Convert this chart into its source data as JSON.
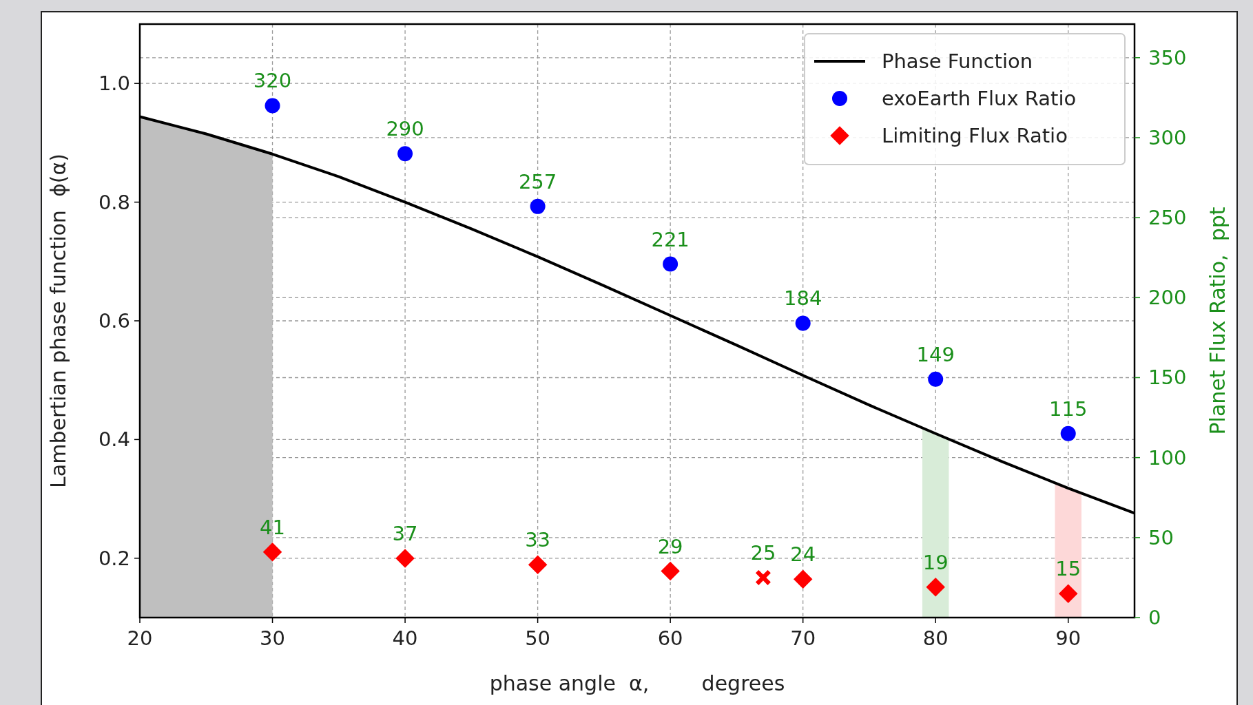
{
  "chart_data": {
    "type": "scatter",
    "xlabel": "phase angle  α,        degrees",
    "ylabel": "Lambertian phase function  ϕ(α)",
    "y2label": "Planet Flux Ratio,  ppt",
    "xlim": [
      20,
      95
    ],
    "xticks": [
      20,
      30,
      40,
      50,
      60,
      70,
      80,
      90
    ],
    "ylim": [
      0.1,
      1.1
    ],
    "yticks": [
      0.2,
      0.4,
      0.6,
      0.8,
      {
        "value": 1,
        "label": "1.0"
      }
    ],
    "y2lim": [
      0,
      371
    ],
    "y2ticks": [
      0,
      50,
      100,
      150,
      200,
      250,
      300,
      350
    ],
    "grid": true,
    "legend": "top right",
    "series": [
      {
        "type": "area",
        "color": "#bfbfbf",
        "x": [
          20,
          25,
          30
        ],
        "values": [
          0.944,
          0.915,
          0.881
        ]
      },
      {
        "type": "area",
        "color": "#d8ecd8",
        "x": [
          79,
          81
        ],
        "values": [
          0.419,
          0.4
        ]
      },
      {
        "type": "area",
        "color": "#fdd8d8",
        "x": [
          89,
          91
        ],
        "values": [
          0.328,
          0.309
        ]
      },
      {
        "type": "line",
        "name": "Phase Function",
        "color": "#000000",
        "marker": "none",
        "line_style": "solid",
        "x": [
          20,
          25,
          30,
          35,
          40,
          45,
          50,
          55,
          60,
          65,
          70,
          75,
          80,
          85,
          90,
          95
        ],
        "values": [
          0.944,
          0.915,
          0.881,
          0.843,
          0.8,
          0.755,
          0.708,
          0.659,
          0.609,
          0.559,
          0.508,
          0.458,
          0.41,
          0.363,
          0.318,
          0.276
        ]
      },
      {
        "name": "exoEarth Flux Ratio",
        "color": "#0000ff",
        "marker": "circle",
        "axis": "y2",
        "x": [
          30,
          40,
          50,
          60,
          70,
          80,
          90
        ],
        "values": [
          320,
          290,
          257,
          221,
          184,
          149,
          115
        ],
        "value_labels": [
          "320",
          "290",
          "257",
          "221",
          "184",
          "149",
          "115"
        ]
      },
      {
        "name": "Limiting Flux Ratio",
        "color": "#ff0000",
        "marker": "diamond",
        "axis": "y2",
        "x": [
          30,
          40,
          50,
          60,
          70,
          80,
          90
        ],
        "values": [
          41,
          37,
          33,
          29,
          24,
          19,
          15
        ],
        "value_labels": [
          "41",
          "37",
          "33",
          "29",
          "24",
          "19",
          "15"
        ]
      },
      {
        "color": "#ff0000",
        "marker": "cross",
        "axis": "y2",
        "x": [
          67
        ],
        "values": [
          25
        ],
        "value_labels": [
          "25"
        ]
      }
    ]
  }
}
